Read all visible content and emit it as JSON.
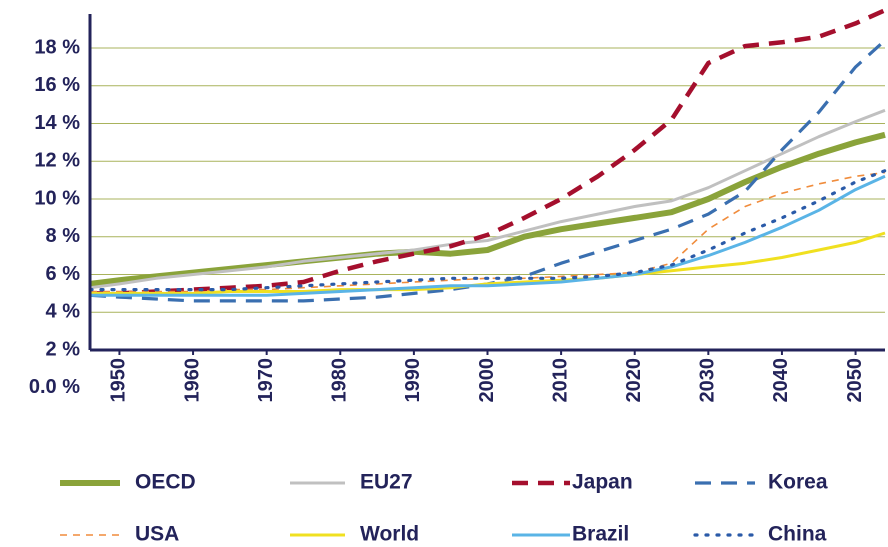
{
  "chart_data": {
    "type": "line",
    "x": [
      1946,
      1950,
      1955,
      1960,
      1965,
      1970,
      1975,
      1980,
      1985,
      1990,
      1995,
      2000,
      2005,
      2010,
      2015,
      2020,
      2025,
      2030,
      2035,
      2040,
      2045,
      2050,
      2054
    ],
    "xlim": [
      1946,
      2054
    ],
    "xticks": [
      1950,
      1960,
      1970,
      1980,
      1990,
      2000,
      2010,
      2020,
      2030,
      2040,
      2050
    ],
    "ylim": [
      2,
      19.8
    ],
    "yticks": [
      {
        "value": 0,
        "label": "0.0 %"
      },
      {
        "value": 2,
        "label": "2 %"
      },
      {
        "value": 4,
        "label": "4 %"
      },
      {
        "value": 6,
        "label": "6 %"
      },
      {
        "value": 8,
        "label": "8 %"
      },
      {
        "value": 10,
        "label": "10 %"
      },
      {
        "value": 12,
        "label": "12 %"
      },
      {
        "value": 14,
        "label": "14 %"
      },
      {
        "value": 16,
        "label": "16 %"
      },
      {
        "value": 18,
        "label": "18 %"
      }
    ],
    "grid": true,
    "series": [
      {
        "name": "OECD",
        "color": "#8aa33a",
        "style": "solid",
        "values": [
          5.5,
          5.7,
          5.9,
          6.1,
          6.3,
          6.5,
          6.7,
          6.9,
          7.1,
          7.2,
          7.1,
          7.3,
          8.0,
          8.4,
          8.7,
          9.0,
          9.3,
          10.0,
          10.9,
          11.7,
          12.4,
          13.0,
          13.4
        ]
      },
      {
        "name": "EU27",
        "color": "#c0c0c0",
        "style": "solid",
        "values": [
          5.3,
          5.5,
          5.8,
          6.0,
          6.2,
          6.4,
          6.7,
          6.9,
          7.1,
          7.3,
          7.6,
          7.8,
          8.3,
          8.8,
          9.2,
          9.6,
          9.9,
          10.6,
          11.5,
          12.4,
          13.3,
          14.1,
          14.7
        ]
      },
      {
        "name": "Japan",
        "color": "#a50f2d",
        "style": "dashed",
        "values": [
          5.0,
          5.0,
          5.1,
          5.2,
          5.3,
          5.4,
          5.6,
          6.2,
          6.7,
          7.1,
          7.5,
          8.1,
          9.0,
          10.0,
          11.2,
          12.6,
          14.2,
          17.2,
          18.1,
          18.3,
          18.6,
          19.3,
          20.0
        ]
      },
      {
        "name": "Korea",
        "color": "#3a6fb0",
        "style": "dashed",
        "values": [
          4.9,
          4.8,
          4.7,
          4.6,
          4.6,
          4.6,
          4.6,
          4.7,
          4.8,
          5.0,
          5.2,
          5.5,
          5.9,
          6.6,
          7.2,
          7.8,
          8.4,
          9.2,
          10.4,
          12.6,
          14.6,
          17.0,
          18.4
        ]
      },
      {
        "name": "USA",
        "color": "#f08c3c",
        "style": "thin-dashed",
        "values": [
          5.1,
          5.1,
          5.1,
          5.1,
          5.2,
          5.2,
          5.3,
          5.4,
          5.5,
          5.6,
          5.7,
          5.8,
          5.8,
          5.9,
          6.0,
          6.1,
          6.6,
          8.4,
          9.6,
          10.3,
          10.8,
          11.2,
          11.4
        ]
      },
      {
        "name": "World",
        "color": "#f0e020",
        "style": "solid",
        "values": [
          5.0,
          5.0,
          5.0,
          5.0,
          5.1,
          5.1,
          5.1,
          5.2,
          5.2,
          5.2,
          5.3,
          5.5,
          5.6,
          5.7,
          5.8,
          6.0,
          6.2,
          6.4,
          6.6,
          6.9,
          7.3,
          7.7,
          8.2
        ]
      },
      {
        "name": "Brazil",
        "color": "#5ab4e6",
        "style": "solid",
        "values": [
          4.9,
          4.9,
          4.9,
          4.9,
          4.9,
          4.9,
          5.0,
          5.1,
          5.2,
          5.3,
          5.4,
          5.4,
          5.5,
          5.6,
          5.8,
          6.0,
          6.4,
          7.0,
          7.7,
          8.5,
          9.4,
          10.5,
          11.2
        ]
      },
      {
        "name": "China",
        "color": "#2a5aa8",
        "style": "dotted",
        "values": [
          5.2,
          5.2,
          5.2,
          5.2,
          5.2,
          5.3,
          5.4,
          5.5,
          5.6,
          5.7,
          5.8,
          5.8,
          5.8,
          5.8,
          5.9,
          6.1,
          6.5,
          7.3,
          8.2,
          9.0,
          9.9,
          10.9,
          11.5
        ]
      }
    ]
  }
}
